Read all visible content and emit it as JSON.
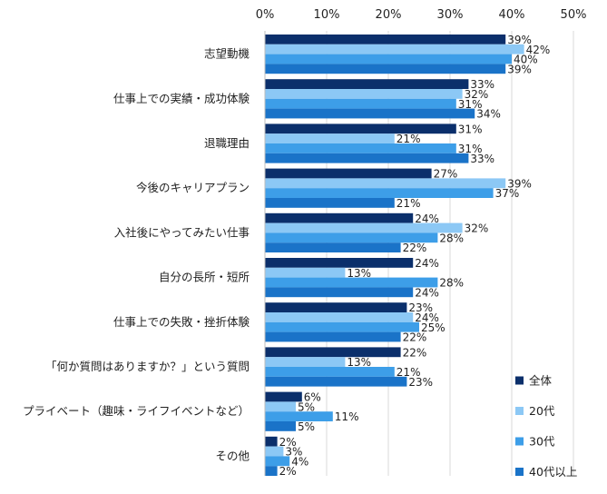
{
  "chart_data": {
    "type": "bar",
    "orientation": "horizontal",
    "title": "",
    "xlabel": "",
    "ylabel": "",
    "xlim": [
      0,
      50
    ],
    "x_ticks": [
      "0%",
      "10%",
      "20%",
      "30%",
      "40%",
      "50%"
    ],
    "x_tick_values": [
      0,
      10,
      20,
      30,
      40,
      50
    ],
    "value_suffix": "%",
    "grid": true,
    "legend_position": "bottom-right",
    "categories": [
      "志望動機",
      "仕事上での実績・成功体験",
      "退職理由",
      "今後のキャリアプラン",
      "入社後にやってみたい仕事",
      "自分の長所・短所",
      "仕事上での失敗・挫折体験",
      "「何か質問はありますか？」という質問",
      "プライベート（趣味・ライフイベントなど）",
      "その他"
    ],
    "series": [
      {
        "name": "全体",
        "color": "#0b2f6b",
        "values": [
          39,
          33,
          31,
          27,
          24,
          24,
          23,
          22,
          6,
          2
        ]
      },
      {
        "name": "20代",
        "color": "#8cc8f5",
        "values": [
          42,
          32,
          21,
          39,
          32,
          13,
          24,
          13,
          5,
          3
        ]
      },
      {
        "name": "30代",
        "color": "#3d9ee8",
        "values": [
          40,
          31,
          31,
          37,
          28,
          28,
          25,
          21,
          11,
          4
        ]
      },
      {
        "name": "40代以上",
        "color": "#1a73c8",
        "values": [
          39,
          34,
          33,
          21,
          22,
          24,
          22,
          23,
          5,
          2
        ]
      }
    ]
  }
}
